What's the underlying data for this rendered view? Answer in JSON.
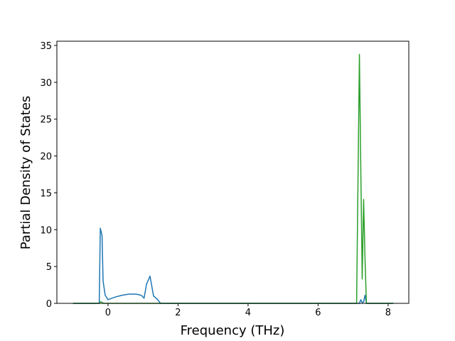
{
  "chart_data": {
    "type": "line",
    "xlabel": "Frequency (THz)",
    "ylabel": "Partial Density of States",
    "x": [
      -1,
      -0.25,
      -0.22,
      -0.17,
      -0.14,
      -0.08,
      0.0,
      0.2,
      0.4,
      0.6,
      0.8,
      0.95,
      1.03,
      1.1,
      1.2,
      1.3,
      1.4,
      1.5,
      7.1,
      7.18,
      7.22,
      7.26,
      7.3,
      7.34,
      7.38,
      8.15
    ],
    "series": [
      {
        "color": "#1f77b4",
        "values": [
          0,
          0,
          10.2,
          9.2,
          3,
          1.1,
          0.5,
          0.85,
          1.1,
          1.25,
          1.25,
          1.1,
          0.7,
          2.6,
          3.7,
          1.0,
          0.6,
          0,
          0,
          0,
          0.5,
          0.1,
          0.2,
          1.1,
          0,
          0
        ]
      },
      {
        "color": "#2ca02c",
        "values": [
          0,
          0,
          0.2,
          0.15,
          0,
          0,
          0,
          0,
          0,
          0,
          0,
          0,
          0,
          0,
          0,
          0,
          0,
          0,
          0,
          33.8,
          18,
          3.3,
          14.1,
          6,
          0,
          0
        ]
      }
    ],
    "xlim": [
      -1.46,
      8.59
    ],
    "ylim": [
      0,
      35.58
    ],
    "xticks": [
      0,
      2,
      4,
      6,
      8
    ],
    "yticks": [
      0,
      5,
      10,
      15,
      20,
      25,
      30,
      35
    ],
    "grid": false
  }
}
